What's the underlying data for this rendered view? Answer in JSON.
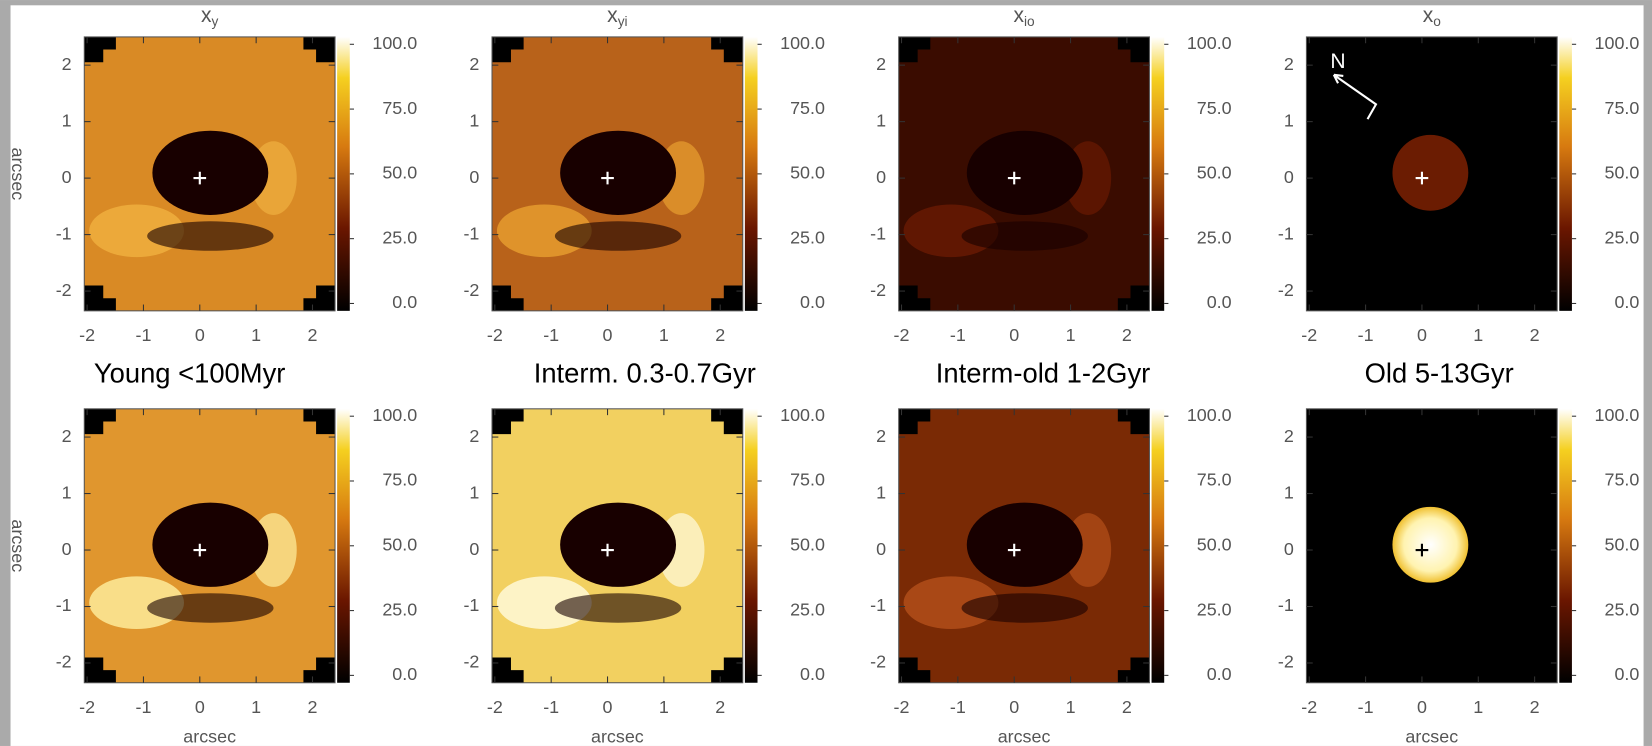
{
  "captions": [
    "Young <100Myr",
    "Interm. 0.3-0.7Gyr",
    "Interm-old 1-2Gyr",
    "Old 5-13Gyr"
  ],
  "chart_data": [
    {
      "type": "heatmap",
      "title": "x",
      "title_sub": "y",
      "ylabel": "arcsec",
      "xlim": [
        -2.05,
        2.4
      ],
      "ylim": [
        -2.35,
        2.5
      ],
      "xticks": [
        -2,
        -1,
        0,
        1,
        2
      ],
      "yticks": [
        -2,
        -1,
        0,
        1,
        2
      ],
      "clim": [
        0,
        100
      ],
      "cticks": [
        {
          "value": 0,
          "label": "0.0"
        },
        {
          "value": 25,
          "label": "25.0"
        },
        {
          "value": 50,
          "label": "50.0"
        },
        {
          "value": 75,
          "label": "75.0"
        },
        {
          "value": 100,
          "label": "100.0"
        }
      ]
    },
    {
      "type": "heatmap",
      "title": "x",
      "title_sub": "yi",
      "xlim": [
        -2.05,
        2.4
      ],
      "ylim": [
        -2.35,
        2.5
      ],
      "xticks": [
        -2,
        -1,
        0,
        1,
        2
      ],
      "yticks": [
        -2,
        -1,
        0,
        1,
        2
      ],
      "clim": [
        0,
        100
      ],
      "cticks": [
        {
          "value": 0,
          "label": "0.0"
        },
        {
          "value": 25,
          "label": "25.0"
        },
        {
          "value": 50,
          "label": "50.0"
        },
        {
          "value": 75,
          "label": "75.0"
        },
        {
          "value": 100,
          "label": "100.0"
        }
      ]
    },
    {
      "type": "heatmap",
      "title": "x",
      "title_sub": "io",
      "xlim": [
        -2.05,
        2.4
      ],
      "ylim": [
        -2.35,
        2.5
      ],
      "xticks": [
        -2,
        -1,
        0,
        1,
        2
      ],
      "yticks": [
        -2,
        -1,
        0,
        1,
        2
      ],
      "clim": [
        0,
        100
      ],
      "cticks": [
        {
          "value": 0,
          "label": "0.0"
        },
        {
          "value": 25,
          "label": "25.0"
        },
        {
          "value": 50,
          "label": "50.0"
        },
        {
          "value": 75,
          "label": "75.0"
        },
        {
          "value": 100,
          "label": "100.0"
        }
      ]
    },
    {
      "type": "heatmap",
      "title": "x",
      "title_sub": "o",
      "annotation": "N",
      "xlim": [
        -2.05,
        2.4
      ],
      "ylim": [
        -2.35,
        2.5
      ],
      "xticks": [
        -2,
        -1,
        0,
        1,
        2
      ],
      "yticks": [
        -2,
        -1,
        0,
        1,
        2
      ],
      "clim": [
        0,
        100
      ],
      "cticks": [
        {
          "value": 0,
          "label": "0.0"
        },
        {
          "value": 25,
          "label": "25.0"
        },
        {
          "value": 50,
          "label": "50.0"
        },
        {
          "value": 75,
          "label": "75.0"
        },
        {
          "value": 100,
          "label": "100.0"
        }
      ]
    },
    {
      "type": "heatmap",
      "ylabel": "arcsec",
      "xlabel": "arcsec",
      "xlim": [
        -2.05,
        2.4
      ],
      "ylim": [
        -2.35,
        2.5
      ],
      "xticks": [
        -2,
        -1,
        0,
        1,
        2
      ],
      "yticks": [
        -2,
        -1,
        0,
        1,
        2
      ],
      "clim": [
        0,
        100
      ],
      "cticks": [
        {
          "value": 0,
          "label": "0.0"
        },
        {
          "value": 25,
          "label": "25.0"
        },
        {
          "value": 50,
          "label": "50.0"
        },
        {
          "value": 75,
          "label": "75.0"
        },
        {
          "value": 100,
          "label": "100.0"
        }
      ]
    },
    {
      "type": "heatmap",
      "xlabel": "arcsec",
      "xlim": [
        -2.05,
        2.4
      ],
      "ylim": [
        -2.35,
        2.5
      ],
      "xticks": [
        -2,
        -1,
        0,
        1,
        2
      ],
      "yticks": [
        -2,
        -1,
        0,
        1,
        2
      ],
      "clim": [
        0,
        100
      ],
      "cticks": [
        {
          "value": 0,
          "label": "0.0"
        },
        {
          "value": 25,
          "label": "25.0"
        },
        {
          "value": 50,
          "label": "50.0"
        },
        {
          "value": 75,
          "label": "75.0"
        },
        {
          "value": 100,
          "label": "100.0"
        }
      ]
    },
    {
      "type": "heatmap",
      "xlabel": "arcsec",
      "xlim": [
        -2.05,
        2.4
      ],
      "ylim": [
        -2.35,
        2.5
      ],
      "xticks": [
        -2,
        -1,
        0,
        1,
        2
      ],
      "yticks": [
        -2,
        -1,
        0,
        1,
        2
      ],
      "clim": [
        0,
        100
      ],
      "cticks": [
        {
          "value": 0,
          "label": "0.0"
        },
        {
          "value": 25,
          "label": "25.0"
        },
        {
          "value": 50,
          "label": "50.0"
        },
        {
          "value": 75,
          "label": "75.0"
        },
        {
          "value": 100,
          "label": "100.0"
        }
      ]
    },
    {
      "type": "heatmap",
      "xlabel": "arcsec",
      "xlim": [
        -2.05,
        2.4
      ],
      "ylim": [
        -2.35,
        2.5
      ],
      "xticks": [
        -2,
        -1,
        0,
        1,
        2
      ],
      "yticks": [
        -2,
        -1,
        0,
        1,
        2
      ],
      "clim": [
        0,
        100
      ],
      "cticks": [
        {
          "value": 0,
          "label": "0.0"
        },
        {
          "value": 25,
          "label": "25.0"
        },
        {
          "value": 50,
          "label": "50.0"
        },
        {
          "value": 75,
          "label": "75.0"
        },
        {
          "value": 100,
          "label": "100.0"
        }
      ]
    }
  ]
}
